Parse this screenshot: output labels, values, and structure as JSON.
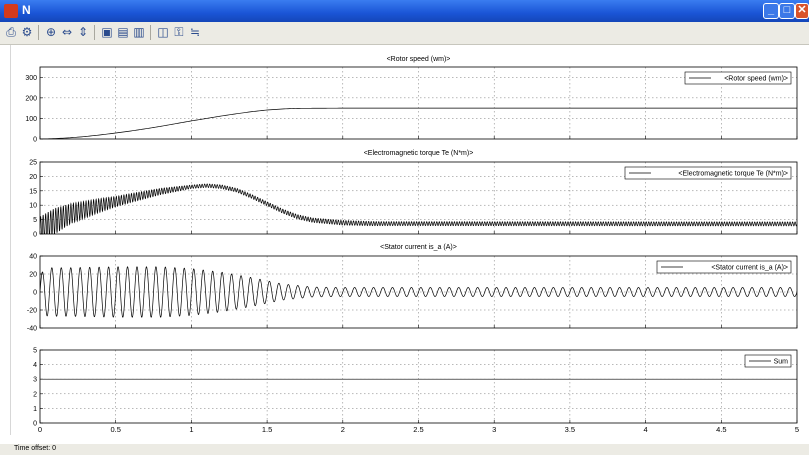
{
  "window": {
    "title": "N",
    "minimize_label": "_",
    "maximize_label": "□",
    "close_label": "✕"
  },
  "toolbar": {
    "icons": [
      "print-icon",
      "parameters-icon",
      "zoom-icon",
      "zoom-x-icon",
      "zoom-y-icon",
      "autoscale-icon",
      "save-axes-icon",
      "restore-axes-icon",
      "floating-scope-icon",
      "lock-icon",
      "signal-selection-icon"
    ]
  },
  "status": {
    "time_offset": "Time offset:  0"
  },
  "chart_data": [
    {
      "type": "line",
      "title": "<Rotor speed (wm)>",
      "legend": "<Rotor speed (wm)>",
      "legend_position": "top-right",
      "xlim": [
        0,
        5
      ],
      "ylim": [
        0,
        350
      ],
      "yticks": [
        "0",
        "100",
        "200",
        "300"
      ],
      "ytick_values": [
        0,
        100,
        200,
        300
      ],
      "grid": true,
      "series": [
        {
          "name": "<Rotor speed (wm)>",
          "x": [
            0,
            0.1,
            0.2,
            0.3,
            0.4,
            0.5,
            0.6,
            0.7,
            0.8,
            0.9,
            1.0,
            1.1,
            1.2,
            1.3,
            1.4,
            1.5,
            1.6,
            1.7,
            2.0,
            5.0
          ],
          "y": [
            0,
            2,
            6,
            12,
            20,
            29,
            39,
            50,
            62,
            75,
            88,
            100,
            112,
            123,
            133,
            141,
            146,
            149,
            150,
            150
          ]
        }
      ]
    },
    {
      "type": "line",
      "title": "<Electromagnetic torque Te (N*m)>",
      "legend": "<Electromagnetic torque Te (N*m)>",
      "legend_position": "top-right",
      "xlim": [
        0,
        5
      ],
      "ylim": [
        0,
        25
      ],
      "yticks": [
        "0",
        "5",
        "10",
        "15",
        "20",
        "25"
      ],
      "ytick_values": [
        0,
        5,
        10,
        15,
        20,
        25
      ],
      "grid": true,
      "envelope_center": {
        "x": [
          0,
          0.1,
          0.2,
          0.4,
          0.6,
          0.8,
          1.0,
          1.1,
          1.2,
          1.3,
          1.4,
          1.5,
          1.6,
          1.7,
          1.8,
          2.0,
          2.2,
          5.0
        ],
        "y": [
          2,
          4.5,
          7,
          10,
          12.5,
          14.8,
          16.4,
          16.8,
          16.4,
          15.2,
          13,
          10.5,
          8,
          6,
          4.8,
          3.9,
          3.6,
          3.5
        ]
      },
      "envelope_amplitude": {
        "x": [
          0,
          0.1,
          0.2,
          0.5,
          1.0,
          1.5,
          2.0,
          2.3,
          5.0
        ],
        "y": [
          4,
          4.5,
          3.5,
          1.8,
          0.6,
          0.7,
          0.8,
          0.7,
          0.7
        ]
      },
      "oscillation_freq_hz": 60
    },
    {
      "type": "line",
      "title": "<Stator current is_a (A)>",
      "legend": "<Stator current is_a (A)>",
      "legend_position": "top-right",
      "xlim": [
        0,
        5
      ],
      "ylim": [
        -40,
        40
      ],
      "yticks": [
        "-40",
        "-20",
        "0",
        "20",
        "40"
      ],
      "ytick_values": [
        -40,
        -20,
        0,
        20,
        40
      ],
      "grid": true,
      "envelope_amplitude": {
        "x": [
          0,
          0.05,
          0.2,
          0.5,
          0.8,
          1.0,
          1.2,
          1.4,
          1.6,
          1.8,
          2.0,
          5.0
        ],
        "y": [
          20,
          27,
          27,
          28,
          28,
          26,
          22,
          16,
          9,
          5.5,
          5,
          5
        ]
      },
      "oscillation_freq_hz": 16
    },
    {
      "type": "line",
      "title": "",
      "legend": "Sum",
      "legend_position": "top-right",
      "xlim": [
        0,
        5
      ],
      "ylim": [
        0,
        5
      ],
      "yticks": [
        "0",
        "1",
        "2",
        "3",
        "4",
        "5"
      ],
      "ytick_values": [
        0,
        1,
        2,
        3,
        4,
        5
      ],
      "xticks": [
        "0",
        "0.5",
        "1",
        "1.5",
        "2",
        "2.5",
        "3",
        "3.5",
        "4",
        "4.5",
        "5"
      ],
      "xtick_values": [
        0,
        0.5,
        1,
        1.5,
        2,
        2.5,
        3,
        3.5,
        4,
        4.5,
        5
      ],
      "grid": true,
      "series": [
        {
          "name": "Sum",
          "x": [
            0,
            5
          ],
          "y": [
            3,
            3
          ]
        }
      ]
    }
  ]
}
